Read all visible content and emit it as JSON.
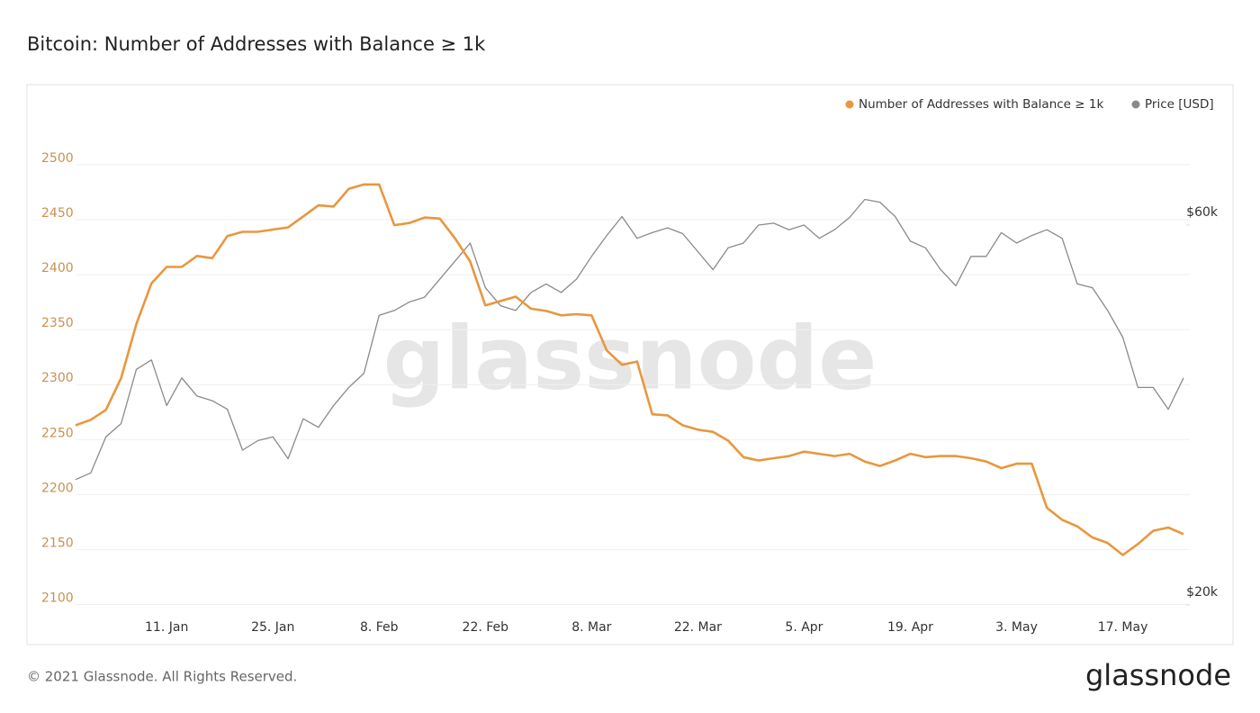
{
  "chart_data": {
    "type": "line",
    "title": "Bitcoin: Number of Addresses with Balance ≥ 1k",
    "watermark": "glassnode",
    "footer": "© 2021 Glassnode. All Rights Reserved.",
    "brand": "glassnode",
    "categories": [
      null,
      null,
      null,
      null,
      null,
      null,
      "11. Jan",
      null,
      null,
      null,
      null,
      null,
      null,
      "25. Jan",
      null,
      null,
      null,
      null,
      null,
      null,
      "8. Feb",
      null,
      null,
      null,
      null,
      null,
      null,
      "22. Feb",
      null,
      null,
      null,
      null,
      null,
      null,
      "8. Mar",
      null,
      null,
      null,
      null,
      null,
      null,
      "22. Mar",
      null,
      null,
      null,
      null,
      null,
      null,
      "5. Apr",
      null,
      null,
      null,
      null,
      null,
      null,
      "19. Apr",
      null,
      null,
      null,
      null,
      null,
      null,
      "3. May",
      null,
      null,
      null,
      null,
      null,
      null,
      "17. May",
      null,
      null,
      null,
      null
    ],
    "series": [
      {
        "name": "Number of Addresses with Balance ≥ 1k",
        "color": "#e8973e",
        "axis": "y",
        "values": [
          2263,
          2268,
          2277,
          2306,
          2355,
          2392,
          2407,
          2407,
          2417,
          2415,
          2435,
          2439,
          2439,
          2441,
          2443,
          2453,
          2463,
          2462,
          2478,
          2482,
          2482,
          2445,
          2447,
          2452,
          2451,
          2433,
          2412,
          2372,
          2376,
          2380,
          2369,
          2367,
          2363,
          2364,
          2363,
          2331,
          2318,
          2321,
          2273,
          2272,
          2263,
          2259,
          2257,
          2249,
          2234,
          2231,
          2233,
          2235,
          2239,
          2237,
          2235,
          2237,
          2230,
          2226,
          2231,
          2237,
          2234,
          2235,
          2235,
          2233,
          2230,
          2224,
          2228,
          2228,
          2188,
          2177,
          2171,
          2161,
          2156,
          2145,
          2155,
          2167,
          2170,
          2164
        ]
      },
      {
        "name": "Price [USD]",
        "color": "#8a8a8a",
        "axis": "y2",
        "values": [
          33200,
          33900,
          37700,
          39100,
          44800,
          45800,
          41000,
          43900,
          42000,
          41500,
          40600,
          36300,
          37300,
          37700,
          35400,
          39600,
          38700,
          41000,
          42900,
          44400,
          50500,
          51000,
          51900,
          52400,
          54300,
          56200,
          58100,
          53400,
          51500,
          51000,
          52900,
          53800,
          52900,
          54300,
          56700,
          58900,
          60900,
          58600,
          59200,
          59700,
          59100,
          57200,
          55300,
          57600,
          58100,
          60000,
          60200,
          59500,
          60000,
          58600,
          59500,
          60800,
          62700,
          62400,
          60900,
          58300,
          57600,
          55300,
          53600,
          56700,
          56700,
          59200,
          58100,
          58900,
          59500,
          58600,
          53800,
          53400,
          51000,
          48200,
          42900,
          42900,
          40600,
          43900
        ]
      }
    ],
    "ylim": [
      2093,
      2545
    ],
    "yticks": [
      2100,
      2150,
      2200,
      2250,
      2300,
      2350,
      2400,
      2450,
      2500
    ],
    "y2lim": [
      19240,
      71560
    ],
    "y2ticks": [
      {
        "value": 20000,
        "label": "$20k"
      },
      {
        "value": 60000,
        "label": "$60k"
      }
    ],
    "grid": true,
    "legend": "top-right"
  }
}
